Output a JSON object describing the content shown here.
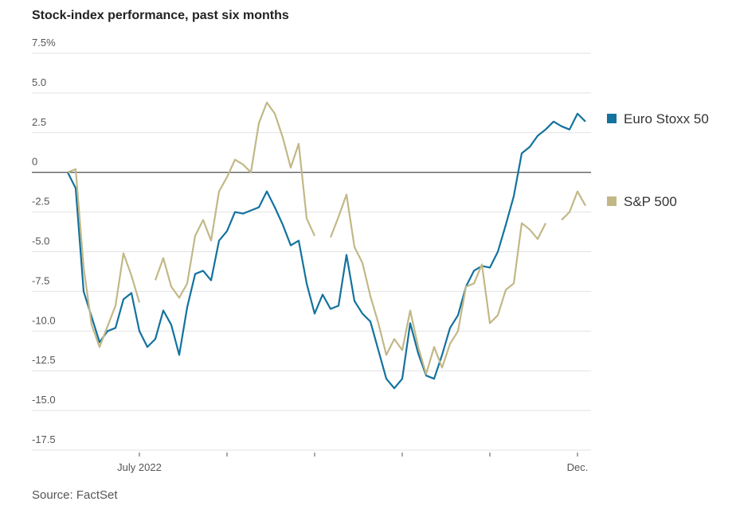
{
  "chart_data": {
    "type": "line",
    "title": "Stock-index performance, past six months",
    "source": "Source: FactSet",
    "categories": [
      null,
      null,
      null,
      null,
      null,
      null,
      null,
      null,
      null,
      "July 2022",
      null,
      null,
      null,
      null,
      null,
      null,
      null,
      null,
      null,
      null,
      null,
      null,
      null,
      null,
      null,
      null,
      null,
      null,
      null,
      null,
      null,
      null,
      null,
      null,
      null,
      null,
      null,
      null,
      null,
      null,
      null,
      null,
      null,
      null,
      null,
      null,
      null,
      null,
      null,
      null,
      null,
      null,
      null,
      null,
      null,
      null,
      null,
      null,
      null,
      null,
      null,
      null,
      null,
      null,
      "Dec.",
      null
    ],
    "xticks": [
      9,
      20,
      31,
      42,
      53,
      64
    ],
    "series": [
      {
        "name": "Euro Stoxx 50",
        "color": "#13729e",
        "values": [
          0,
          -1,
          -7.5,
          -9.1,
          -10.7,
          -10,
          -9.8,
          -8,
          -7.6,
          -10,
          -11,
          -10.5,
          -8.7,
          -9.6,
          -11.5,
          -8.5,
          -6.4,
          -6.2,
          -6.8,
          -4.3,
          -3.7,
          -2.5,
          -2.6,
          -2.4,
          -2.2,
          -1.2,
          -2.2,
          -3.3,
          -4.6,
          -4.3,
          -7,
          -8.9,
          -7.7,
          -8.6,
          -8.4,
          -5.2,
          -8.1,
          -8.9,
          -9.4,
          -11.2,
          -13,
          -13.6,
          -13,
          -9.5,
          -11.4,
          -12.8,
          -13,
          -11.5,
          -9.8,
          -9,
          -7.2,
          -6.2,
          -5.9,
          -6,
          -5,
          -3.3,
          -1.5,
          1.2,
          1.6,
          2.3,
          2.7,
          3.2,
          2.9,
          2.7,
          3.7,
          3.2
        ]
      },
      {
        "name": "S&P 500",
        "color": "#c2b887",
        "values": [
          0,
          0.2,
          -6,
          -9.6,
          -11,
          -9.7,
          -8.4,
          -5.1,
          -6.5,
          -8.2,
          null,
          -6.8,
          -5.4,
          -7.2,
          -7.9,
          -7,
          -4,
          -3,
          -4.3,
          -1.2,
          -0.3,
          0.8,
          0.5,
          0,
          3.1,
          4.4,
          3.7,
          2.2,
          0.3,
          1.8,
          -2.9,
          -4,
          null,
          -4.1,
          -2.8,
          -1.4,
          -4.7,
          -5.7,
          -7.8,
          -9.5,
          -11.5,
          -10.5,
          -11.2,
          -8.7,
          -11,
          -12.7,
          -11,
          -12.3,
          -10.8,
          -10,
          -7.2,
          -7,
          -5.8,
          -9.5,
          -9,
          -7.4,
          -7,
          -3.2,
          -3.6,
          -4.2,
          -3.2,
          null,
          -3,
          -2.5,
          -1.2,
          -2.1
        ]
      }
    ],
    "ylim": [
      -17.5,
      7.5
    ],
    "yticks": [
      {
        "value": 7.5,
        "label": "7.5%"
      },
      {
        "value": 5,
        "label": "5.0"
      },
      2.5,
      0,
      -2.5,
      {
        "value": -5,
        "label": "-5.0"
      },
      -7.5,
      {
        "value": -10,
        "label": "-10.0"
      },
      -12.5,
      {
        "value": -15,
        "label": "-15.0"
      },
      -17.5
    ],
    "grid": true
  }
}
